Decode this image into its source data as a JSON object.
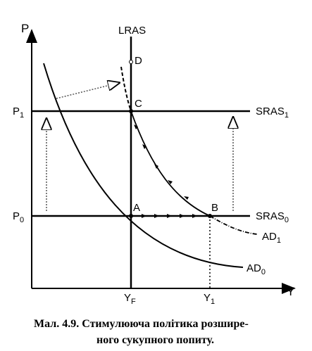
{
  "axes": {
    "y_axis_label": "P",
    "x_axis_label": "Y",
    "y_ticks": [
      {
        "main": "P",
        "sub": "1"
      },
      {
        "main": "P",
        "sub": "0"
      }
    ],
    "x_ticks": [
      {
        "main": "Y",
        "sub": "F"
      },
      {
        "main": "Y",
        "sub": "1"
      }
    ]
  },
  "curves": {
    "lras": {
      "main": "LRAS"
    },
    "sras1": {
      "main": "SRAS",
      "sub": "1"
    },
    "sras0": {
      "main": "SRAS",
      "sub": "0"
    },
    "ad1": {
      "main": "AD",
      "sub": "1"
    },
    "ad0": {
      "main": "AD",
      "sub": "0"
    }
  },
  "points": {
    "a": "A",
    "b": "B",
    "c": "C",
    "d": "D"
  },
  "caption": {
    "line1": "Мал. 4.9. Стимулююча політика розшире-",
    "line2": "ного сукупного попиту."
  }
}
